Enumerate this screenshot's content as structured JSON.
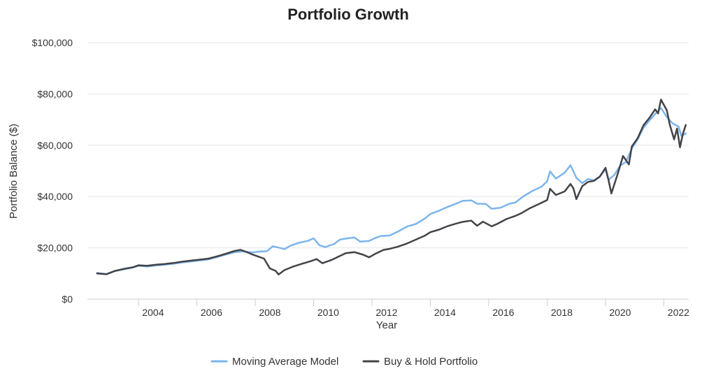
{
  "chart_data": {
    "type": "line",
    "title": "Portfolio Growth",
    "xlabel": "Year",
    "ylabel": "Portfolio Balance ($)",
    "ylim": [
      0,
      100000
    ],
    "yticks": [
      "$0",
      "$20,000",
      "$40,000",
      "$60,000",
      "$80,000",
      "$100,000"
    ],
    "xticks": [
      "2004",
      "2006",
      "2008",
      "2010",
      "2012",
      "2014",
      "2016",
      "2018",
      "2020",
      "2022"
    ],
    "grid": "horizontal",
    "legend_position": "bottom",
    "series": [
      {
        "name": "Moving Average Model",
        "color": "#7cb5ec",
        "points": [
          [
            2002.58,
            10200
          ],
          [
            2002.9,
            9800
          ],
          [
            2003.2,
            11000
          ],
          [
            2003.5,
            11600
          ],
          [
            2003.8,
            12300
          ],
          [
            2004.0,
            13000
          ],
          [
            2004.3,
            12700
          ],
          [
            2004.6,
            13100
          ],
          [
            2004.9,
            13400
          ],
          [
            2005.2,
            13800
          ],
          [
            2005.5,
            14300
          ],
          [
            2005.8,
            14700
          ],
          [
            2006.1,
            15100
          ],
          [
            2006.4,
            15500
          ],
          [
            2006.7,
            16400
          ],
          [
            2007.0,
            17400
          ],
          [
            2007.3,
            18300
          ],
          [
            2007.6,
            18600
          ],
          [
            2007.9,
            18200
          ],
          [
            2008.1,
            18500
          ],
          [
            2008.4,
            18700
          ],
          [
            2008.6,
            20600
          ],
          [
            2008.8,
            20100
          ],
          [
            2009.0,
            19500
          ],
          [
            2009.2,
            20800
          ],
          [
            2009.5,
            22000
          ],
          [
            2009.8,
            22700
          ],
          [
            2010.0,
            23700
          ],
          [
            2010.2,
            21000
          ],
          [
            2010.4,
            20300
          ],
          [
            2010.7,
            21500
          ],
          [
            2010.9,
            23200
          ],
          [
            2011.1,
            23600
          ],
          [
            2011.4,
            24000
          ],
          [
            2011.6,
            22400
          ],
          [
            2011.9,
            22700
          ],
          [
            2012.1,
            23800
          ],
          [
            2012.3,
            24600
          ],
          [
            2012.6,
            24800
          ],
          [
            2012.9,
            26400
          ],
          [
            2013.2,
            28300
          ],
          [
            2013.5,
            29300
          ],
          [
            2013.8,
            31300
          ],
          [
            2014.0,
            33200
          ],
          [
            2014.3,
            34500
          ],
          [
            2014.6,
            36000
          ],
          [
            2014.9,
            37300
          ],
          [
            2015.1,
            38300
          ],
          [
            2015.4,
            38500
          ],
          [
            2015.6,
            37200
          ],
          [
            2015.9,
            37100
          ],
          [
            2016.1,
            35200
          ],
          [
            2016.4,
            35600
          ],
          [
            2016.7,
            37200
          ],
          [
            2016.9,
            37600
          ],
          [
            2017.2,
            40200
          ],
          [
            2017.5,
            42200
          ],
          [
            2017.8,
            43800
          ],
          [
            2018.0,
            45900
          ],
          [
            2018.1,
            49800
          ],
          [
            2018.3,
            47000
          ],
          [
            2018.6,
            49300
          ],
          [
            2018.8,
            52200
          ],
          [
            2019.0,
            47300
          ],
          [
            2019.2,
            45200
          ],
          [
            2019.4,
            46800
          ],
          [
            2019.6,
            46300
          ],
          [
            2019.8,
            47800
          ],
          [
            2020.0,
            50600
          ],
          [
            2020.1,
            46500
          ],
          [
            2020.3,
            48400
          ],
          [
            2020.5,
            52000
          ],
          [
            2020.7,
            53500
          ],
          [
            2020.9,
            58700
          ],
          [
            2021.1,
            62300
          ],
          [
            2021.3,
            66800
          ],
          [
            2021.5,
            69600
          ],
          [
            2021.7,
            72200
          ],
          [
            2021.9,
            74500
          ],
          [
            2022.1,
            71000
          ],
          [
            2022.3,
            68500
          ],
          [
            2022.5,
            67300
          ],
          [
            2022.6,
            63600
          ],
          [
            2022.75,
            64600
          ]
        ]
      },
      {
        "name": "Buy & Hold Portfolio",
        "color": "#434348",
        "points": [
          [
            2002.58,
            10000
          ],
          [
            2002.9,
            9700
          ],
          [
            2003.2,
            11000
          ],
          [
            2003.5,
            11800
          ],
          [
            2003.8,
            12400
          ],
          [
            2004.0,
            13200
          ],
          [
            2004.3,
            13000
          ],
          [
            2004.6,
            13400
          ],
          [
            2004.9,
            13700
          ],
          [
            2005.2,
            14100
          ],
          [
            2005.5,
            14600
          ],
          [
            2005.8,
            15000
          ],
          [
            2006.1,
            15400
          ],
          [
            2006.4,
            15800
          ],
          [
            2006.7,
            16700
          ],
          [
            2007.0,
            17700
          ],
          [
            2007.3,
            18800
          ],
          [
            2007.5,
            19200
          ],
          [
            2007.7,
            18400
          ],
          [
            2007.9,
            17400
          ],
          [
            2008.1,
            16600
          ],
          [
            2008.3,
            15800
          ],
          [
            2008.5,
            12000
          ],
          [
            2008.7,
            11000
          ],
          [
            2008.8,
            9600
          ],
          [
            2009.0,
            11300
          ],
          [
            2009.3,
            12700
          ],
          [
            2009.6,
            13800
          ],
          [
            2009.9,
            14800
          ],
          [
            2010.1,
            15600
          ],
          [
            2010.3,
            14000
          ],
          [
            2010.6,
            15200
          ],
          [
            2010.9,
            16800
          ],
          [
            2011.1,
            17900
          ],
          [
            2011.4,
            18300
          ],
          [
            2011.7,
            17300
          ],
          [
            2011.9,
            16300
          ],
          [
            2012.1,
            17600
          ],
          [
            2012.4,
            19200
          ],
          [
            2012.6,
            19600
          ],
          [
            2012.9,
            20500
          ],
          [
            2013.2,
            21700
          ],
          [
            2013.5,
            23200
          ],
          [
            2013.8,
            24700
          ],
          [
            2014.0,
            26100
          ],
          [
            2014.3,
            27100
          ],
          [
            2014.6,
            28500
          ],
          [
            2014.9,
            29500
          ],
          [
            2015.1,
            30100
          ],
          [
            2015.4,
            30600
          ],
          [
            2015.6,
            28600
          ],
          [
            2015.8,
            30200
          ],
          [
            2016.1,
            28400
          ],
          [
            2016.3,
            29400
          ],
          [
            2016.6,
            31200
          ],
          [
            2016.9,
            32400
          ],
          [
            2017.1,
            33400
          ],
          [
            2017.4,
            35400
          ],
          [
            2017.7,
            37000
          ],
          [
            2018.0,
            38600
          ],
          [
            2018.1,
            43000
          ],
          [
            2018.3,
            40600
          ],
          [
            2018.6,
            42000
          ],
          [
            2018.8,
            44900
          ],
          [
            2018.9,
            43200
          ],
          [
            2019.0,
            39000
          ],
          [
            2019.2,
            44000
          ],
          [
            2019.4,
            45700
          ],
          [
            2019.6,
            46100
          ],
          [
            2019.8,
            47700
          ],
          [
            2020.0,
            51200
          ],
          [
            2020.1,
            46500
          ],
          [
            2020.2,
            41200
          ],
          [
            2020.4,
            48200
          ],
          [
            2020.6,
            55800
          ],
          [
            2020.8,
            52500
          ],
          [
            2020.9,
            59500
          ],
          [
            2021.1,
            62700
          ],
          [
            2021.3,
            67800
          ],
          [
            2021.5,
            70600
          ],
          [
            2021.7,
            74000
          ],
          [
            2021.8,
            72400
          ],
          [
            2021.9,
            77800
          ],
          [
            2022.1,
            73600
          ],
          [
            2022.2,
            68000
          ],
          [
            2022.35,
            62300
          ],
          [
            2022.45,
            66500
          ],
          [
            2022.55,
            59200
          ],
          [
            2022.65,
            64500
          ],
          [
            2022.75,
            67900
          ]
        ]
      }
    ]
  }
}
